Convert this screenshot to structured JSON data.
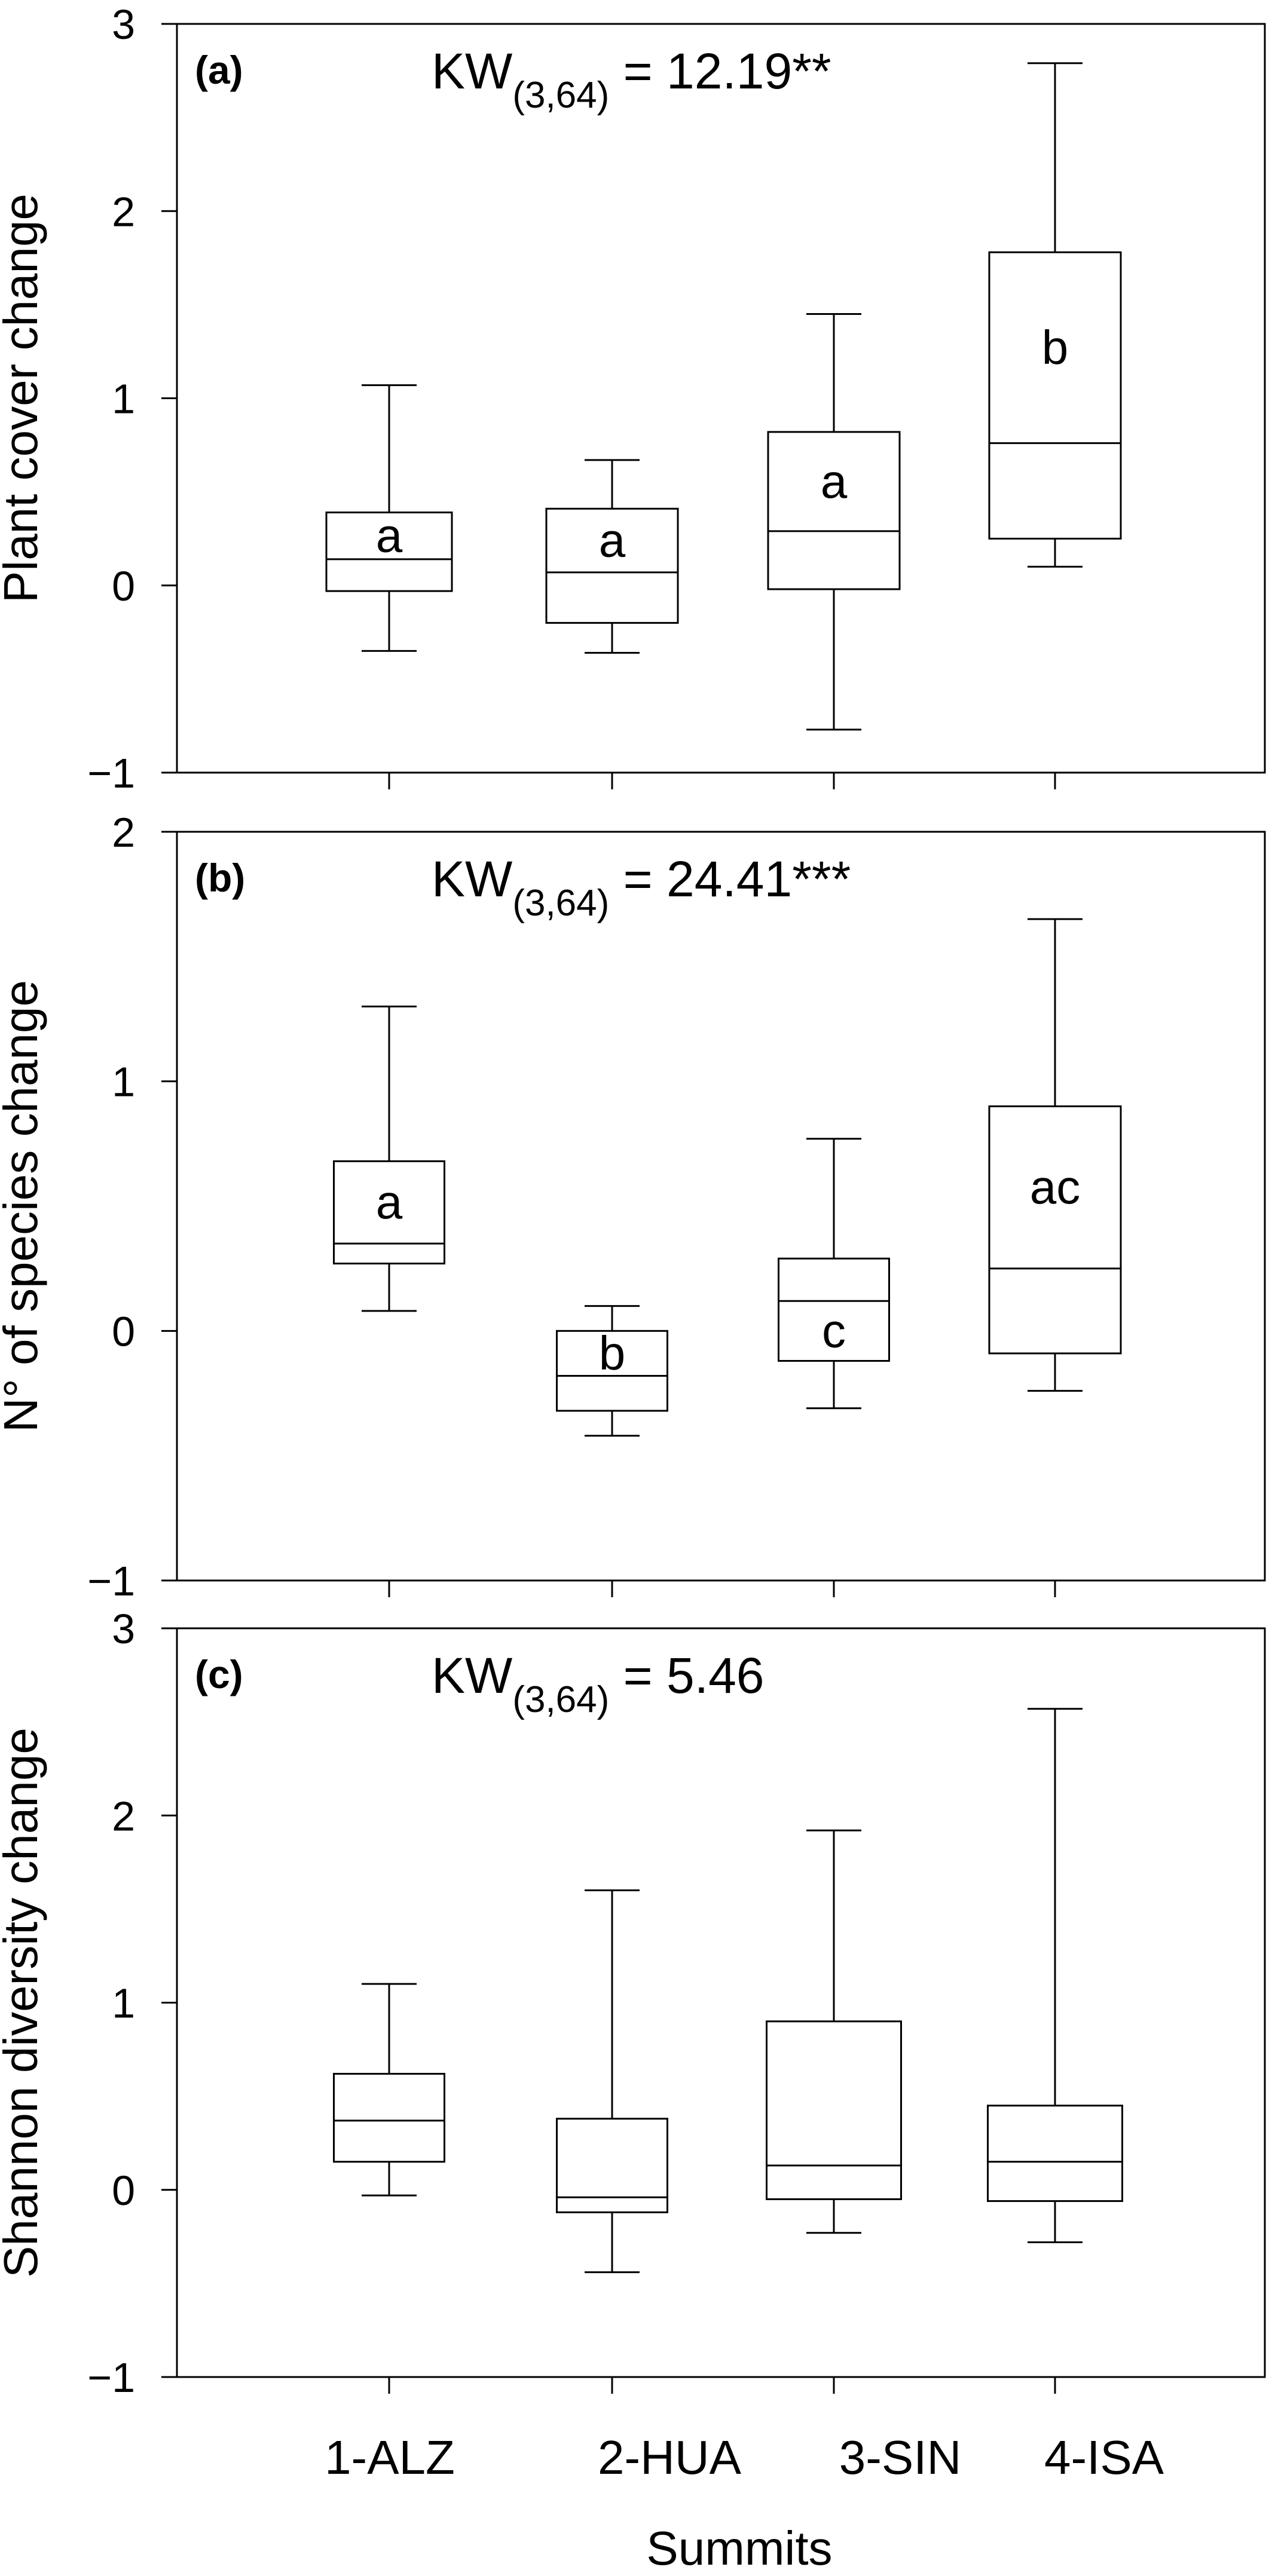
{
  "chart_data": [
    {
      "type": "box",
      "panel_label": "(a)",
      "stat": {
        "prefix": "KW",
        "subscript": "(3,64)",
        "suffix": " = 12.19**"
      },
      "ylabel": "Plant cover change",
      "ylim": [
        -1,
        3
      ],
      "yticks": [
        -1,
        0,
        1,
        2,
        3
      ],
      "ytick_labels": [
        "−1",
        "0",
        "1",
        "2",
        "3"
      ],
      "categories": [
        "1-ALZ",
        "2-HUA",
        "3-SIN",
        "4-ISA"
      ],
      "boxes": [
        {
          "min": -0.35,
          "q1": -0.03,
          "median": 0.14,
          "q3": 0.39,
          "max": 1.07,
          "group": "a"
        },
        {
          "min": -0.36,
          "q1": -0.2,
          "median": 0.07,
          "q3": 0.41,
          "max": 0.67,
          "group": "a"
        },
        {
          "min": -0.77,
          "q1": -0.02,
          "median": 0.29,
          "q3": 0.82,
          "max": 1.45,
          "group": "a"
        },
        {
          "min": 0.1,
          "q1": 0.25,
          "median": 0.76,
          "q3": 1.78,
          "max": 2.79,
          "group": "b"
        }
      ]
    },
    {
      "type": "box",
      "panel_label": "(b)",
      "stat": {
        "prefix": "KW",
        "subscript": "(3,64)",
        "suffix": " = 24.41***"
      },
      "ylabel": "N° of species change",
      "ylim": [
        -1,
        2
      ],
      "yticks": [
        -1,
        0,
        1,
        2
      ],
      "ytick_labels": [
        "−1",
        "0",
        "1",
        "2"
      ],
      "categories": [
        "1-ALZ",
        "2-HUA",
        "3-SIN",
        "4-ISA"
      ],
      "boxes": [
        {
          "min": 0.08,
          "q1": 0.27,
          "median": 0.35,
          "q3": 0.68,
          "max": 1.3,
          "group": "a"
        },
        {
          "min": -0.42,
          "q1": -0.32,
          "median": -0.18,
          "q3": 0.0,
          "max": 0.1,
          "group": "b"
        },
        {
          "min": -0.31,
          "q1": -0.12,
          "median": 0.12,
          "q3": 0.29,
          "max": 0.77,
          "group": "c"
        },
        {
          "min": -0.24,
          "q1": -0.09,
          "median": 0.25,
          "q3": 0.9,
          "max": 1.65,
          "group": "ac"
        }
      ]
    },
    {
      "type": "box",
      "panel_label": "(c)",
      "stat": {
        "prefix": "KW",
        "subscript": "(3,64)",
        "suffix": " = 5.46"
      },
      "ylabel": "Shannon diversity change",
      "ylim": [
        -1,
        3
      ],
      "yticks": [
        -1,
        0,
        1,
        2,
        3
      ],
      "ytick_labels": [
        "−1",
        "0",
        "1",
        "2",
        "3"
      ],
      "categories": [
        "1-ALZ",
        "2-HUA",
        "3-SIN",
        "4-ISA"
      ],
      "boxes": [
        {
          "min": -0.03,
          "q1": 0.15,
          "median": 0.37,
          "q3": 0.62,
          "max": 1.1,
          "group": ""
        },
        {
          "min": -0.44,
          "q1": -0.12,
          "median": -0.04,
          "q3": 0.38,
          "max": 1.6,
          "group": ""
        },
        {
          "min": -0.23,
          "q1": -0.05,
          "median": 0.13,
          "q3": 0.9,
          "max": 1.92,
          "group": ""
        },
        {
          "min": -0.28,
          "q1": -0.06,
          "median": 0.15,
          "q3": 0.45,
          "max": 2.57,
          "group": ""
        }
      ]
    }
  ],
  "xlabel": "Summits",
  "categories": [
    "1-ALZ",
    "2-HUA",
    "3-SIN",
    "4-ISA"
  ]
}
